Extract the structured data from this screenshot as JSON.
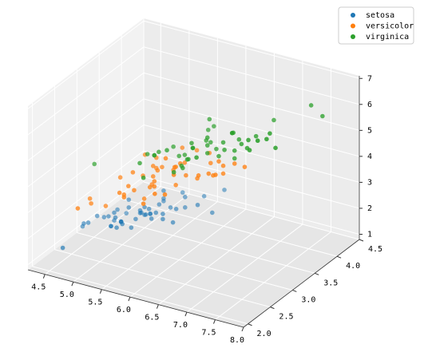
{
  "chart_data": {
    "type": "scatter3d",
    "xlim": [
      4.2,
      8.0
    ],
    "ylim": [
      1.9,
      4.5
    ],
    "zlim": [
      0.8,
      7.1
    ],
    "xticks": [
      {
        "value": 4.5,
        "label": "4.5"
      },
      {
        "value": 5.0,
        "label": "5.0"
      },
      {
        "value": 5.5,
        "label": "5.5"
      },
      {
        "value": 6.0,
        "label": "6.0"
      },
      {
        "value": 6.5,
        "label": "6.5"
      },
      {
        "value": 7.0,
        "label": "7.0"
      },
      {
        "value": 7.5,
        "label": "7.5"
      },
      {
        "value": 8.0,
        "label": "8.0"
      }
    ],
    "yticks": [
      {
        "value": 2.0,
        "label": "2.0"
      },
      {
        "value": 2.5,
        "label": "2.5"
      },
      {
        "value": 3.0,
        "label": "3.0"
      },
      {
        "value": 3.5,
        "label": "3.5"
      },
      {
        "value": 4.0,
        "label": "4.0"
      },
      {
        "value": 4.5,
        "label": "4.5"
      }
    ],
    "zticks": [
      1,
      2,
      3,
      4,
      5,
      6,
      7
    ],
    "grid": true,
    "legend": "upper right",
    "series": [
      {
        "name": "setosa",
        "color": "#1f77b4",
        "x": [
          5.1,
          4.9,
          4.7,
          4.6,
          5.0,
          5.4,
          4.6,
          5.0,
          4.4,
          4.9,
          5.4,
          4.8,
          4.8,
          4.3,
          5.8,
          5.7,
          5.4,
          5.1,
          5.7,
          5.1,
          5.4,
          5.1,
          4.6,
          5.1,
          4.8,
          5.0,
          5.0,
          5.2,
          5.2,
          4.7,
          4.8,
          5.4,
          5.2,
          5.5,
          4.9,
          5.0,
          5.5,
          4.9,
          4.4,
          5.1,
          5.0,
          4.5,
          4.4,
          5.0,
          5.1,
          4.8,
          5.1,
          4.6,
          5.3,
          5.0
        ],
        "y": [
          3.5,
          3.0,
          3.2,
          3.1,
          3.6,
          3.9,
          3.4,
          3.4,
          2.9,
          3.1,
          3.7,
          3.4,
          3.0,
          3.0,
          4.0,
          4.4,
          3.9,
          3.5,
          3.8,
          3.8,
          3.4,
          3.7,
          3.6,
          3.3,
          3.4,
          3.0,
          3.4,
          3.5,
          3.4,
          3.2,
          3.1,
          3.4,
          4.1,
          4.2,
          3.1,
          3.2,
          3.5,
          3.1,
          3.0,
          3.4,
          3.5,
          2.3,
          3.2,
          3.5,
          3.8,
          3.0,
          3.8,
          3.2,
          3.7,
          3.3
        ],
        "z": [
          1.4,
          1.4,
          1.3,
          1.5,
          1.4,
          1.7,
          1.4,
          1.5,
          1.4,
          1.5,
          1.5,
          1.6,
          1.4,
          1.1,
          1.2,
          1.5,
          1.3,
          1.4,
          1.7,
          1.5,
          1.7,
          1.5,
          1.0,
          1.7,
          1.9,
          1.6,
          1.6,
          1.5,
          1.4,
          1.6,
          1.6,
          1.5,
          1.5,
          1.4,
          1.5,
          1.2,
          1.3,
          1.5,
          1.3,
          1.5,
          1.3,
          1.3,
          1.3,
          1.6,
          1.9,
          1.4,
          1.6,
          1.4,
          1.5,
          1.4
        ]
      },
      {
        "name": "versicolor",
        "color": "#ff7f0e",
        "x": [
          7.0,
          6.4,
          6.9,
          5.5,
          6.5,
          5.7,
          6.3,
          4.9,
          6.6,
          5.2,
          5.0,
          5.9,
          6.0,
          6.1,
          5.6,
          6.7,
          5.6,
          5.8,
          6.2,
          5.6,
          5.9,
          6.1,
          6.3,
          6.1,
          6.4,
          6.6,
          6.8,
          6.7,
          6.0,
          5.7,
          5.5,
          5.5,
          5.8,
          6.0,
          5.4,
          6.0,
          6.7,
          6.3,
          5.6,
          5.5,
          5.5,
          6.1,
          5.8,
          5.0,
          5.6,
          5.7,
          5.7,
          6.2,
          5.1,
          5.7
        ],
        "y": [
          3.2,
          3.2,
          3.1,
          2.3,
          2.8,
          2.8,
          3.3,
          2.4,
          2.9,
          2.7,
          2.0,
          3.0,
          2.2,
          2.9,
          2.9,
          3.1,
          3.0,
          2.7,
          2.2,
          2.5,
          3.2,
          2.8,
          2.5,
          2.8,
          2.9,
          3.0,
          2.8,
          3.0,
          2.9,
          2.6,
          2.4,
          2.4,
          2.7,
          2.7,
          3.0,
          3.4,
          3.1,
          2.3,
          3.0,
          2.5,
          2.6,
          3.0,
          2.6,
          2.3,
          2.7,
          3.0,
          2.9,
          2.9,
          2.5,
          2.8
        ],
        "z": [
          4.7,
          4.5,
          4.9,
          4.0,
          4.6,
          4.5,
          4.7,
          3.3,
          4.6,
          3.9,
          3.5,
          4.2,
          4.0,
          4.7,
          3.6,
          4.4,
          4.5,
          4.1,
          4.5,
          3.9,
          4.8,
          4.0,
          4.9,
          4.7,
          4.3,
          4.4,
          4.8,
          5.0,
          4.5,
          3.5,
          3.8,
          3.7,
          3.9,
          5.1,
          4.5,
          4.5,
          4.7,
          4.4,
          4.1,
          4.0,
          4.4,
          4.6,
          4.0,
          3.3,
          4.2,
          4.2,
          4.2,
          4.3,
          3.0,
          4.1
        ]
      },
      {
        "name": "virginica",
        "color": "#2ca02c",
        "x": [
          6.3,
          5.8,
          7.1,
          6.3,
          6.5,
          7.6,
          4.9,
          7.3,
          6.7,
          7.2,
          6.5,
          6.4,
          6.8,
          5.7,
          5.8,
          6.4,
          6.5,
          7.7,
          7.7,
          6.0,
          6.9,
          5.6,
          7.7,
          6.3,
          6.7,
          7.2,
          6.2,
          6.1,
          6.4,
          7.2,
          7.4,
          7.9,
          6.4,
          6.3,
          6.1,
          7.7,
          6.3,
          6.4,
          6.0,
          6.9,
          6.7,
          6.9,
          5.8,
          6.8,
          6.7,
          6.7,
          6.3,
          6.5,
          6.2,
          5.9
        ],
        "y": [
          3.3,
          2.7,
          3.0,
          2.9,
          3.0,
          3.0,
          2.5,
          2.9,
          2.5,
          3.6,
          3.2,
          2.7,
          3.0,
          2.5,
          2.8,
          3.2,
          3.0,
          3.8,
          2.6,
          2.2,
          3.2,
          2.8,
          2.8,
          2.7,
          3.3,
          3.2,
          2.8,
          3.0,
          2.8,
          3.0,
          2.8,
          3.8,
          2.8,
          2.8,
          2.6,
          3.0,
          3.4,
          3.1,
          3.0,
          3.1,
          3.1,
          3.1,
          2.7,
          3.2,
          3.3,
          3.0,
          2.5,
          3.0,
          3.4,
          3.0
        ],
        "z": [
          6.0,
          5.1,
          5.9,
          5.6,
          5.8,
          6.6,
          4.5,
          6.3,
          5.8,
          6.1,
          5.1,
          5.3,
          5.5,
          5.0,
          5.1,
          5.3,
          5.5,
          6.7,
          6.9,
          5.0,
          5.7,
          4.9,
          6.7,
          4.9,
          5.7,
          6.0,
          4.8,
          4.9,
          5.6,
          5.8,
          6.1,
          6.4,
          5.6,
          5.1,
          5.6,
          6.1,
          5.6,
          5.5,
          4.8,
          5.4,
          5.6,
          5.1,
          5.1,
          5.9,
          5.7,
          5.2,
          5.0,
          5.2,
          5.4,
          5.1
        ]
      }
    ]
  }
}
